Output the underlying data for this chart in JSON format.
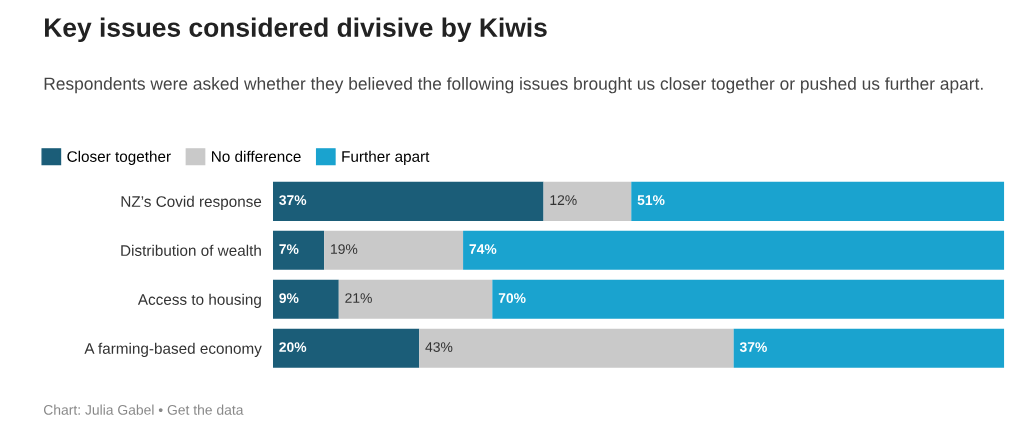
{
  "chart_data": {
    "type": "bar",
    "orientation": "horizontal",
    "stacked": true,
    "legend": "top left",
    "tick_labels": "y",
    "grid": false,
    "title": "Key issues considered divisive by Kiwis",
    "subtitle": "Respondents were asked whether they believed the following issues brought us closer together or pushed us further apart.",
    "categories": [
      "NZ’s Covid response",
      "Distribution of wealth",
      "Access to housing",
      "A farming-based economy"
    ],
    "series": [
      {
        "name": "Closer together",
        "color": "#1b5d78",
        "values": [
          37,
          7,
          9,
          20
        ],
        "value_labels": [
          "37%",
          "7%",
          "9%",
          "20%"
        ]
      },
      {
        "name": "No difference",
        "color": "#c9c9c9",
        "values": [
          12,
          19,
          21,
          43
        ],
        "value_labels": [
          "12%",
          "19%",
          "21%",
          "43%"
        ]
      },
      {
        "name": "Further apart",
        "color": "#1aa3cf",
        "values": [
          51,
          74,
          70,
          37
        ],
        "value_labels": [
          "51%",
          "74%",
          "70%",
          "37%"
        ]
      }
    ],
    "annotations": [
      "Chart: Julia Gabel • Get the data"
    ]
  }
}
